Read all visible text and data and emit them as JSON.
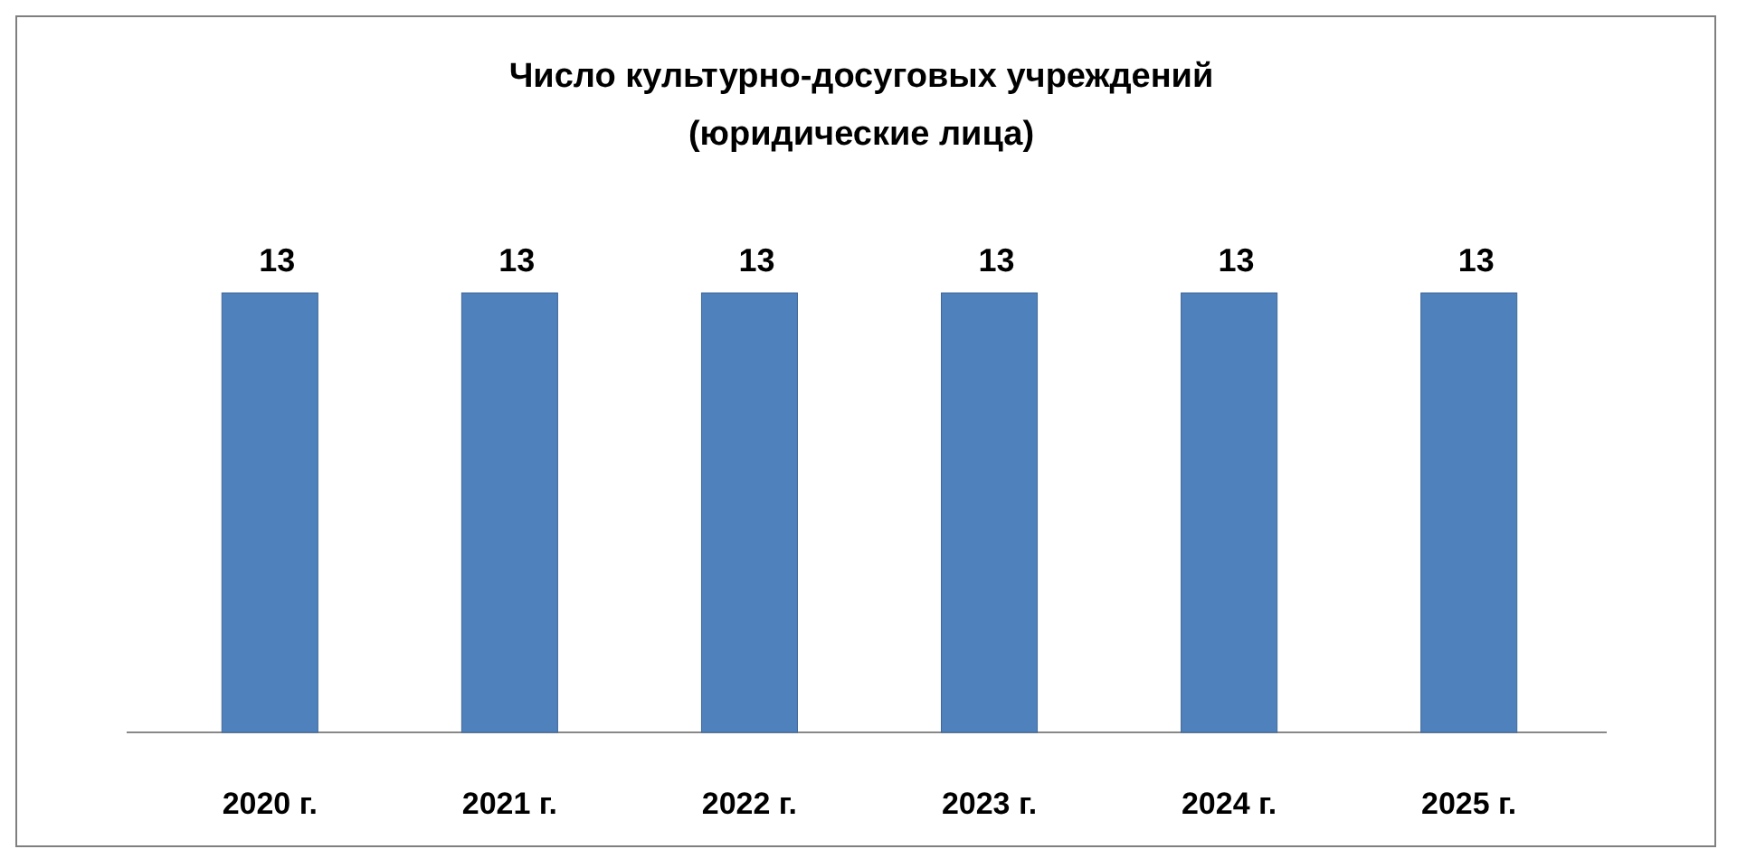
{
  "chart_data": {
    "type": "bar",
    "title": "Число культурно-досуговых учреждений",
    "subtitle": "(юридические лица)",
    "categories": [
      "2020 г.",
      "2021 г.",
      "2022 г.",
      "2023 г.",
      "2024 г.",
      "2025 г."
    ],
    "values": [
      13,
      13,
      13,
      13,
      13,
      13
    ],
    "color": "#4f81bd",
    "data_labels": true
  }
}
